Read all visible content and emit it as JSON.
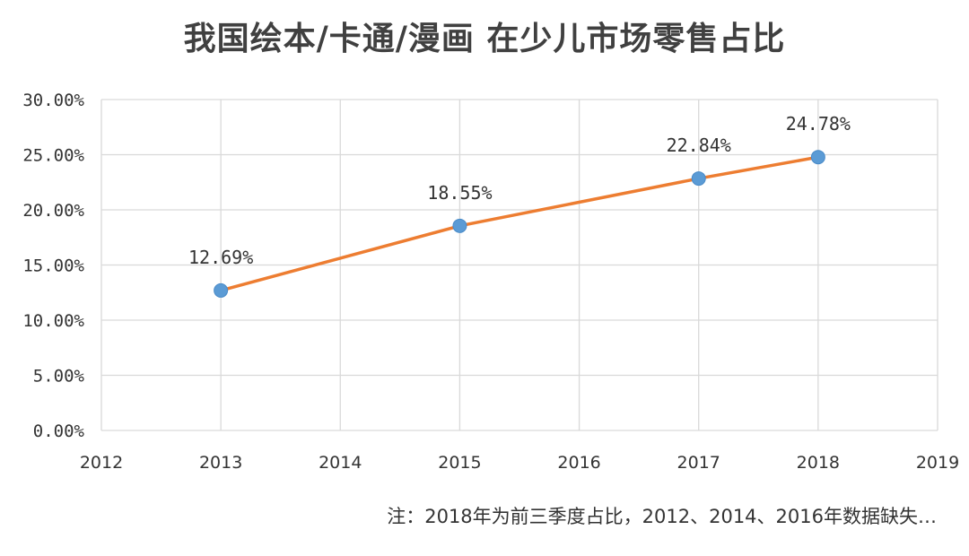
{
  "chart_data": {
    "type": "scatter",
    "title": "我国绘本/卡通/漫画 在少儿市场零售占比",
    "x": [
      2013,
      2015,
      2017,
      2018
    ],
    "series": [
      {
        "values": [
          12.69,
          18.55,
          22.84,
          24.78
        ]
      }
    ],
    "data_labels": [
      "12.69%",
      "18.55%",
      "22.84%",
      "24.78%"
    ],
    "xlim": [
      2012,
      2019
    ],
    "ylim": [
      0,
      30
    ],
    "x_ticks": [
      "2012",
      "2013",
      "2014",
      "2015",
      "2016",
      "2017",
      "2018",
      "2019"
    ],
    "y_ticks": [
      "0.00%",
      "5.00%",
      "10.00%",
      "15.00%",
      "20.00%",
      "25.00%",
      "30.00%"
    ],
    "grid": true,
    "line_color": "#ED7D31",
    "marker_color": "#5B9BD5",
    "note": "注：2018年为前三季度占比，2012、2014、2016年数据缺失…"
  }
}
